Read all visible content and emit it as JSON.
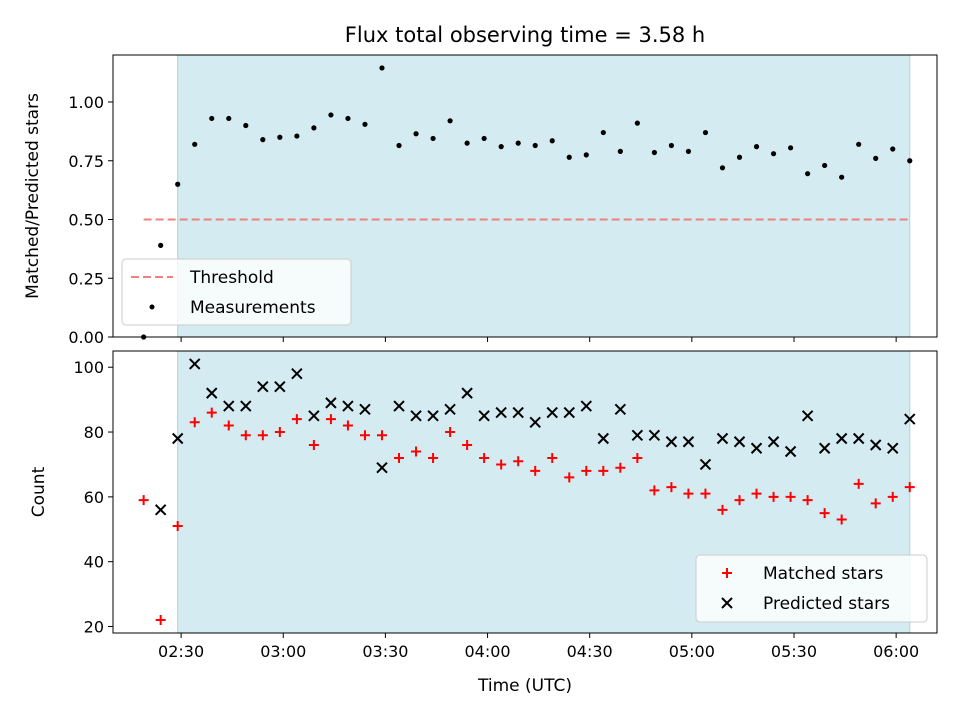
{
  "chart_data": {
    "type": "scatter",
    "title": "Flux total observing time = 3.58 h",
    "xlabel": "Time (UTC)",
    "x_ticks": [
      "02:30",
      "03:00",
      "03:30",
      "04:00",
      "04:30",
      "05:00",
      "05:30",
      "06:00"
    ],
    "x_tick_hours": [
      2.5,
      3.0,
      3.5,
      4.0,
      4.5,
      5.0,
      5.5,
      6.0
    ],
    "xlim": [
      "02:10",
      "06:12"
    ],
    "shaded_span": [
      "02:29",
      "06:04"
    ],
    "shade_color": "#d3ebf1",
    "x": [
      "02:19",
      "02:24",
      "02:29",
      "02:34",
      "02:39",
      "02:44",
      "02:49",
      "02:54",
      "02:59",
      "03:04",
      "03:09",
      "03:14",
      "03:19",
      "03:24",
      "03:29",
      "03:34",
      "03:39",
      "03:44",
      "03:49",
      "03:54",
      "03:59",
      "04:04",
      "04:09",
      "04:14",
      "04:19",
      "04:24",
      "04:29",
      "04:34",
      "04:39",
      "04:44",
      "04:49",
      "04:54",
      "04:59",
      "05:04",
      "05:09",
      "05:14",
      "05:19",
      "05:24",
      "05:29",
      "05:34",
      "05:39",
      "05:44",
      "05:49",
      "05:54",
      "05:59",
      "06:04"
    ],
    "panels": [
      {
        "ylabel": "Matched/Predicted stars",
        "ylim": [
          0,
          1.2
        ],
        "y_ticks": [
          "0.00",
          "0.25",
          "0.50",
          "0.75",
          "1.00"
        ],
        "threshold": {
          "name": "Threshold",
          "value": 0.5,
          "color": "#f08080"
        },
        "legend_position": "lower-left",
        "series": [
          {
            "name": "Measurements",
            "marker": "dot",
            "color": "#000000",
            "values": [
              0.0,
              0.39,
              0.65,
              0.82,
              0.93,
              0.93,
              0.9,
              0.84,
              0.85,
              0.855,
              0.89,
              0.945,
              0.93,
              0.905,
              1.145,
              0.815,
              0.865,
              0.845,
              0.92,
              0.825,
              0.845,
              0.81,
              0.825,
              0.815,
              0.835,
              0.765,
              0.775,
              0.87,
              0.79,
              0.91,
              0.785,
              0.815,
              0.79,
              0.87,
              0.72,
              0.765,
              0.81,
              0.78,
              0.805,
              0.695,
              0.73,
              0.68,
              0.82,
              0.76,
              0.8,
              0.75
            ]
          }
        ]
      },
      {
        "ylabel": "Count",
        "ylim": [
          18,
          105
        ],
        "y_ticks": [
          "20",
          "40",
          "60",
          "80",
          "100"
        ],
        "legend_position": "lower-right",
        "series": [
          {
            "name": "Matched stars",
            "marker": "plus",
            "color": "#ff0000",
            "values": [
              59,
              22,
              51,
              83,
              86,
              82,
              79,
              79,
              80,
              84,
              76,
              84,
              82,
              79,
              79,
              72,
              74,
              72,
              80,
              76,
              72,
              70,
              71,
              68,
              72,
              66,
              68,
              68,
              69,
              72,
              62,
              63,
              61,
              61,
              56,
              59,
              61,
              60,
              60,
              59,
              55,
              53,
              64,
              58,
              60,
              63
            ]
          },
          {
            "name": "Predicted stars",
            "marker": "x",
            "color": "#000000",
            "values": [
              null,
              56,
              78,
              101,
              92,
              88,
              88,
              94,
              94,
              98,
              85,
              89,
              88,
              87,
              69,
              88,
              85,
              85,
              87,
              92,
              85,
              86,
              86,
              83,
              86,
              86,
              88,
              78,
              87,
              79,
              79,
              77,
              77,
              70,
              78,
              77,
              75,
              77,
              74,
              85,
              75,
              78,
              78,
              76,
              75,
              84
            ]
          }
        ]
      }
    ]
  }
}
